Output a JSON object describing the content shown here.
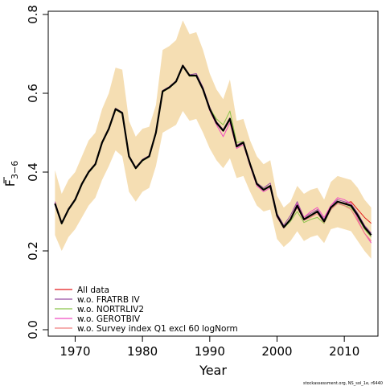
{
  "chart_data": {
    "type": "line",
    "xlabel": "Year",
    "ylabel_main": "F",
    "ylabel_sub": "3−6",
    "xlim": [
      1966,
      2015
    ],
    "ylim": [
      0,
      0.8
    ],
    "xticks": [
      1970,
      1980,
      1990,
      2000,
      2010
    ],
    "yticks": [
      0.0,
      0.2,
      0.4,
      0.6,
      0.8
    ],
    "ytick_labels": [
      "0.0",
      "0.2",
      "0.4",
      "0.6",
      "0.8"
    ],
    "band_color": "#f5deb3",
    "x": [
      1967,
      1968,
      1969,
      1970,
      1971,
      1972,
      1973,
      1974,
      1975,
      1976,
      1977,
      1978,
      1979,
      1980,
      1981,
      1982,
      1983,
      1984,
      1985,
      1986,
      1987,
      1988,
      1989,
      1990,
      1991,
      1992,
      1993,
      1994,
      1995,
      1996,
      1997,
      1998,
      1999,
      2000,
      2001,
      2002,
      2003,
      2004,
      2005,
      2006,
      2007,
      2008,
      2009,
      2010,
      2011,
      2012,
      2013,
      2014
    ],
    "band_upper": [
      0.405,
      0.345,
      0.38,
      0.4,
      0.44,
      0.48,
      0.5,
      0.56,
      0.6,
      0.665,
      0.66,
      0.53,
      0.49,
      0.51,
      0.515,
      0.57,
      0.71,
      0.72,
      0.735,
      0.785,
      0.75,
      0.755,
      0.71,
      0.65,
      0.61,
      0.585,
      0.635,
      0.53,
      0.535,
      0.48,
      0.44,
      0.42,
      0.43,
      0.34,
      0.31,
      0.325,
      0.365,
      0.345,
      0.355,
      0.36,
      0.33,
      0.375,
      0.39,
      0.385,
      0.38,
      0.36,
      0.33,
      0.31
    ],
    "band_lower": [
      0.24,
      0.2,
      0.235,
      0.255,
      0.285,
      0.315,
      0.335,
      0.38,
      0.415,
      0.455,
      0.44,
      0.35,
      0.325,
      0.35,
      0.36,
      0.415,
      0.5,
      0.51,
      0.52,
      0.555,
      0.53,
      0.535,
      0.5,
      0.46,
      0.43,
      0.41,
      0.435,
      0.385,
      0.39,
      0.35,
      0.315,
      0.3,
      0.305,
      0.23,
      0.21,
      0.225,
      0.25,
      0.225,
      0.235,
      0.24,
      0.22,
      0.255,
      0.26,
      0.255,
      0.25,
      0.225,
      0.2,
      0.18
    ],
    "series": [
      {
        "name": "",
        "color": "#000000",
        "width": 2.2,
        "values": [
          0.32,
          0.27,
          0.305,
          0.33,
          0.37,
          0.4,
          0.42,
          0.475,
          0.51,
          0.56,
          0.55,
          0.44,
          0.41,
          0.43,
          0.44,
          0.5,
          0.605,
          0.615,
          0.63,
          0.67,
          0.645,
          0.645,
          0.61,
          0.56,
          0.525,
          0.505,
          0.535,
          0.465,
          0.475,
          0.42,
          0.37,
          0.355,
          0.365,
          0.29,
          0.26,
          0.28,
          0.315,
          0.28,
          0.29,
          0.3,
          0.275,
          0.31,
          0.325,
          0.32,
          0.315,
          0.29,
          0.26,
          0.24
        ]
      },
      {
        "name": "All data",
        "color": "#e41a1c",
        "width": 1,
        "values": [
          0.32,
          0.27,
          0.305,
          0.33,
          0.37,
          0.4,
          0.42,
          0.475,
          0.51,
          0.56,
          0.55,
          0.44,
          0.41,
          0.43,
          0.44,
          0.5,
          0.605,
          0.615,
          0.63,
          0.67,
          0.645,
          0.645,
          0.61,
          0.56,
          0.525,
          0.505,
          0.535,
          0.465,
          0.475,
          0.42,
          0.37,
          0.355,
          0.365,
          0.29,
          0.26,
          0.28,
          0.315,
          0.28,
          0.29,
          0.3,
          0.275,
          0.31,
          0.325,
          0.32,
          0.325,
          0.305,
          0.285,
          0.27
        ]
      },
      {
        "name": "w.o. FRATRB IV",
        "color": "#984ea3",
        "width": 1,
        "values": [
          0.325,
          0.272,
          0.307,
          0.332,
          0.372,
          0.402,
          0.422,
          0.477,
          0.512,
          0.562,
          0.552,
          0.442,
          0.412,
          0.432,
          0.442,
          0.502,
          0.607,
          0.617,
          0.632,
          0.672,
          0.647,
          0.65,
          0.615,
          0.565,
          0.528,
          0.508,
          0.538,
          0.468,
          0.478,
          0.423,
          0.373,
          0.36,
          0.372,
          0.295,
          0.265,
          0.29,
          0.325,
          0.285,
          0.295,
          0.305,
          0.28,
          0.315,
          0.33,
          0.325,
          0.32,
          0.295,
          0.265,
          0.245
        ]
      },
      {
        "name": "w.o. NORTRLIV2",
        "color": "#8bc34a",
        "width": 1,
        "values": [
          0.318,
          0.268,
          0.303,
          0.328,
          0.368,
          0.398,
          0.418,
          0.473,
          0.508,
          0.558,
          0.548,
          0.438,
          0.408,
          0.428,
          0.438,
          0.498,
          0.603,
          0.613,
          0.628,
          0.668,
          0.643,
          0.643,
          0.608,
          0.562,
          0.535,
          0.52,
          0.555,
          0.475,
          0.478,
          0.42,
          0.372,
          0.357,
          0.362,
          0.287,
          0.258,
          0.275,
          0.3,
          0.272,
          0.28,
          0.285,
          0.27,
          0.305,
          0.32,
          0.315,
          0.31,
          0.285,
          0.255,
          0.235
        ]
      },
      {
        "name": "w.o. GEROTBIV",
        "color": "#f14cc1",
        "width": 1,
        "values": [
          0.322,
          0.271,
          0.306,
          0.331,
          0.371,
          0.401,
          0.421,
          0.476,
          0.511,
          0.561,
          0.551,
          0.441,
          0.411,
          0.431,
          0.441,
          0.501,
          0.606,
          0.616,
          0.631,
          0.671,
          0.646,
          0.646,
          0.611,
          0.556,
          0.52,
          0.49,
          0.525,
          0.46,
          0.47,
          0.415,
          0.365,
          0.35,
          0.36,
          0.286,
          0.258,
          0.282,
          0.32,
          0.285,
          0.3,
          0.31,
          0.285,
          0.315,
          0.335,
          0.33,
          0.32,
          0.28,
          0.245,
          0.22
        ]
      },
      {
        "name": "w.o. Survey index Q1 excl 60 logNorm",
        "color": "#f08080",
        "width": 1,
        "values": [
          0.321,
          0.27,
          0.305,
          0.33,
          0.37,
          0.4,
          0.42,
          0.475,
          0.51,
          0.56,
          0.55,
          0.44,
          0.41,
          0.43,
          0.44,
          0.5,
          0.605,
          0.615,
          0.63,
          0.67,
          0.645,
          0.645,
          0.61,
          0.56,
          0.525,
          0.505,
          0.535,
          0.465,
          0.475,
          0.42,
          0.37,
          0.355,
          0.365,
          0.29,
          0.26,
          0.28,
          0.31,
          0.278,
          0.285,
          0.295,
          0.272,
          0.305,
          0.32,
          0.315,
          0.305,
          0.275,
          0.245,
          0.225
        ]
      }
    ],
    "legend": [
      "All data",
      "w.o. FRATRB IV",
      "w.o. NORTRLIV2",
      "w.o. GEROTBIV",
      "w.o. Survey index Q1 excl 60 logNorm"
    ],
    "legend_colors": [
      "#e41a1c",
      "#984ea3",
      "#8bc34a",
      "#f14cc1",
      "#f08080"
    ],
    "legend_position": "bottom-left",
    "footer": "stockassessment.org, NS_sol_1e, r6440"
  }
}
